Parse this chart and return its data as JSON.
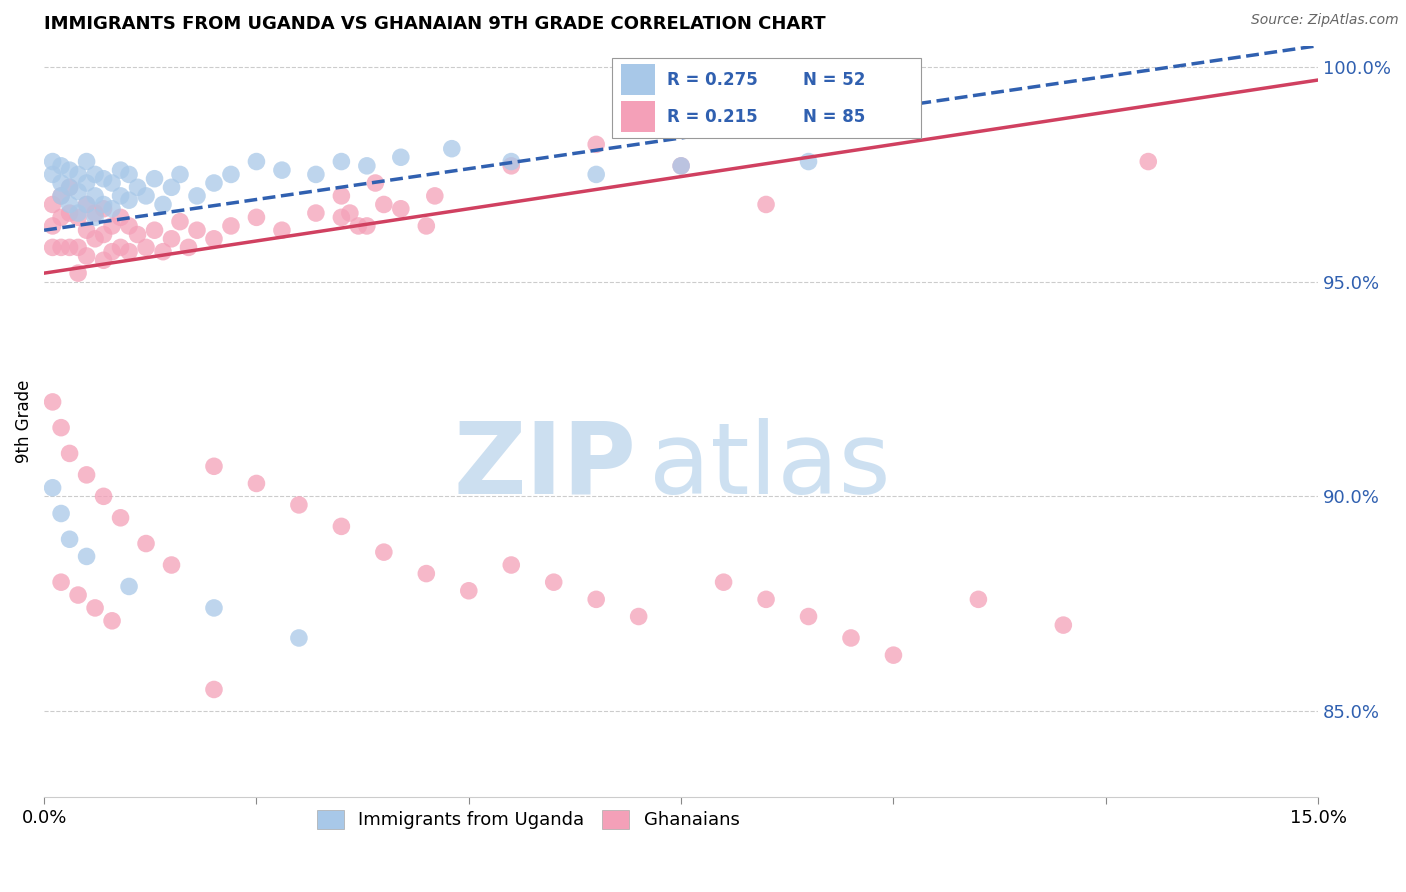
{
  "title": "IMMIGRANTS FROM UGANDA VS GHANAIAN 9TH GRADE CORRELATION CHART",
  "source": "Source: ZipAtlas.com",
  "ylabel": "9th Grade",
  "right_yticks": [
    "100.0%",
    "95.0%",
    "90.0%",
    "85.0%"
  ],
  "right_ytick_vals": [
    1.0,
    0.95,
    0.9,
    0.85
  ],
  "xlim": [
    0,
    0.15
  ],
  "ylim": [
    0.83,
    1.005
  ],
  "legend_blue_label": "Immigrants from Uganda",
  "legend_pink_label": "Ghanaians",
  "legend_R_blue": "R = 0.275",
  "legend_N_blue": "N = 52",
  "legend_R_pink": "R = 0.215",
  "legend_N_pink": "N = 85",
  "blue_color": "#a8c8e8",
  "pink_color": "#f4a0b8",
  "line_blue": "#3060b0",
  "line_pink": "#d04060",
  "stats_text_color": "#3060b0",
  "blue_x": [
    0.001,
    0.001,
    0.002,
    0.002,
    0.002,
    0.003,
    0.003,
    0.003,
    0.004,
    0.004,
    0.004,
    0.005,
    0.005,
    0.005,
    0.006,
    0.006,
    0.006,
    0.007,
    0.007,
    0.008,
    0.008,
    0.009,
    0.009,
    0.01,
    0.01,
    0.011,
    0.012,
    0.013,
    0.014,
    0.015,
    0.016,
    0.018,
    0.02,
    0.022,
    0.025,
    0.028,
    0.032,
    0.035,
    0.038,
    0.042,
    0.048,
    0.055,
    0.065,
    0.075,
    0.001,
    0.002,
    0.003,
    0.005,
    0.01,
    0.02,
    0.03,
    0.09
  ],
  "blue_y": [
    0.978,
    0.975,
    0.977,
    0.973,
    0.97,
    0.976,
    0.972,
    0.968,
    0.975,
    0.971,
    0.966,
    0.978,
    0.973,
    0.968,
    0.975,
    0.97,
    0.965,
    0.974,
    0.968,
    0.973,
    0.967,
    0.976,
    0.97,
    0.975,
    0.969,
    0.972,
    0.97,
    0.974,
    0.968,
    0.972,
    0.975,
    0.97,
    0.973,
    0.975,
    0.978,
    0.976,
    0.975,
    0.978,
    0.977,
    0.979,
    0.981,
    0.978,
    0.975,
    0.977,
    0.902,
    0.896,
    0.89,
    0.886,
    0.879,
    0.874,
    0.867,
    0.978
  ],
  "pink_x": [
    0.001,
    0.001,
    0.001,
    0.002,
    0.002,
    0.002,
    0.003,
    0.003,
    0.003,
    0.004,
    0.004,
    0.004,
    0.005,
    0.005,
    0.005,
    0.006,
    0.006,
    0.007,
    0.007,
    0.007,
    0.008,
    0.008,
    0.009,
    0.009,
    0.01,
    0.01,
    0.011,
    0.012,
    0.013,
    0.014,
    0.015,
    0.016,
    0.017,
    0.018,
    0.02,
    0.022,
    0.025,
    0.028,
    0.032,
    0.035,
    0.038,
    0.042,
    0.046,
    0.001,
    0.002,
    0.003,
    0.005,
    0.007,
    0.009,
    0.012,
    0.015,
    0.02,
    0.025,
    0.03,
    0.035,
    0.04,
    0.045,
    0.05,
    0.055,
    0.06,
    0.065,
    0.07,
    0.08,
    0.085,
    0.09,
    0.095,
    0.1,
    0.11,
    0.12,
    0.13,
    0.035,
    0.036,
    0.037,
    0.039,
    0.045,
    0.055,
    0.065,
    0.075,
    0.085,
    0.002,
    0.004,
    0.006,
    0.008,
    0.02,
    0.04
  ],
  "pink_y": [
    0.968,
    0.963,
    0.958,
    0.97,
    0.965,
    0.958,
    0.972,
    0.966,
    0.958,
    0.965,
    0.958,
    0.952,
    0.968,
    0.962,
    0.956,
    0.966,
    0.96,
    0.967,
    0.961,
    0.955,
    0.963,
    0.957,
    0.965,
    0.958,
    0.963,
    0.957,
    0.961,
    0.958,
    0.962,
    0.957,
    0.96,
    0.964,
    0.958,
    0.962,
    0.96,
    0.963,
    0.965,
    0.962,
    0.966,
    0.965,
    0.963,
    0.967,
    0.97,
    0.922,
    0.916,
    0.91,
    0.905,
    0.9,
    0.895,
    0.889,
    0.884,
    0.907,
    0.903,
    0.898,
    0.893,
    0.887,
    0.882,
    0.878,
    0.884,
    0.88,
    0.876,
    0.872,
    0.88,
    0.876,
    0.872,
    0.867,
    0.863,
    0.876,
    0.87,
    0.978,
    0.97,
    0.966,
    0.963,
    0.973,
    0.963,
    0.977,
    0.982,
    0.977,
    0.968,
    0.88,
    0.877,
    0.874,
    0.871,
    0.855,
    0.968
  ]
}
